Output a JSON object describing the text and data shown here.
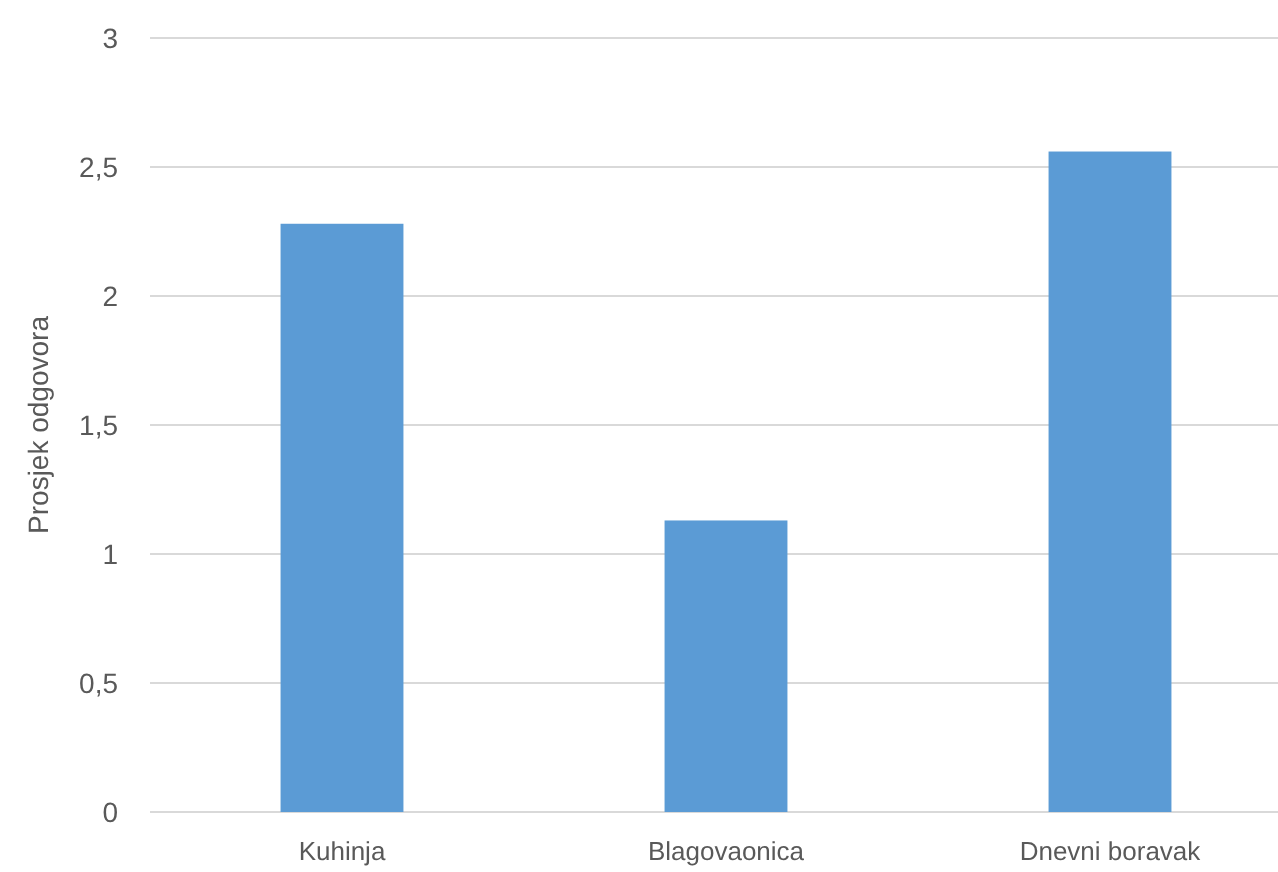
{
  "chart_data": {
    "type": "bar",
    "ylabel": "Prosjek odgovora",
    "categories": [
      "Kuhinja",
      "Blagovaonica",
      "Dnevni boravak"
    ],
    "values": [
      2.28,
      1.13,
      2.56
    ],
    "color": "#5b9bd5",
    "ylim": [
      0,
      3
    ],
    "yticks": [
      0,
      {
        "value": 0.5,
        "label": "0,5"
      },
      1,
      {
        "value": 1.5,
        "label": "1,5"
      },
      2,
      {
        "value": 2.5,
        "label": "2,5"
      },
      3
    ],
    "grid": "y"
  }
}
